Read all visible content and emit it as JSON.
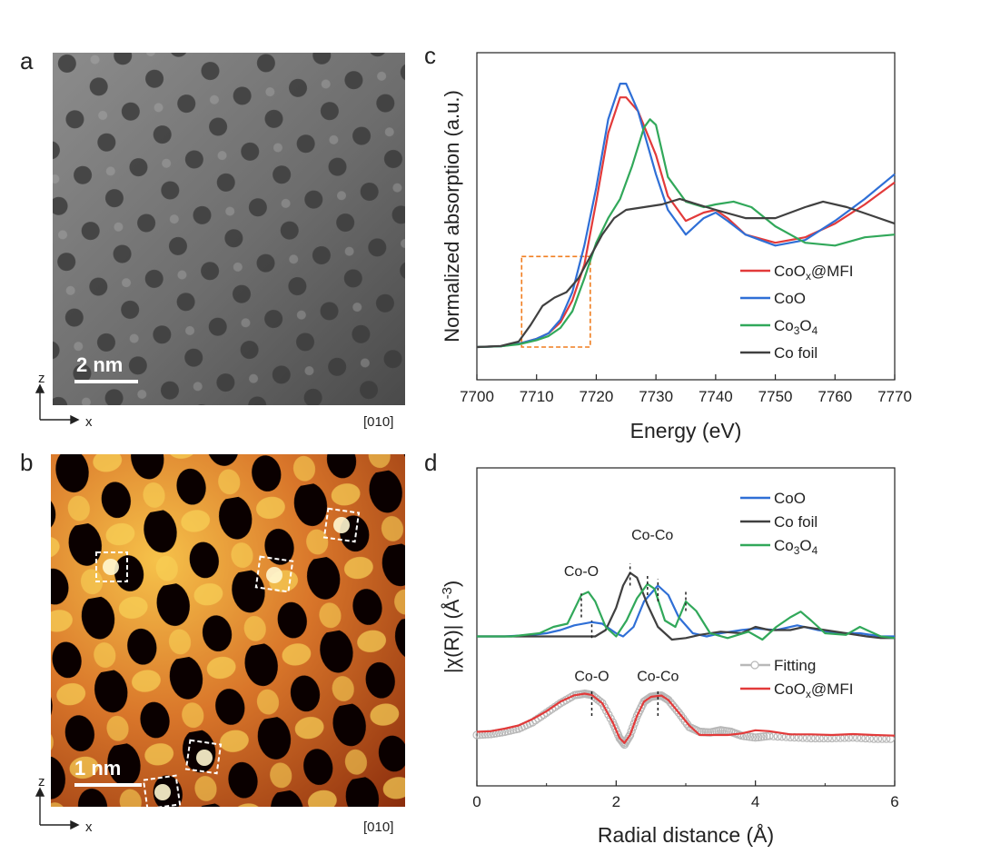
{
  "panels": {
    "a": {
      "label": "a",
      "scale_bar": "2 nm",
      "axis_z": "z",
      "axis_x": "x",
      "zone_axis": "[010]"
    },
    "b": {
      "label": "b",
      "scale_bar": "1 nm",
      "axis_z": "z",
      "axis_x": "x",
      "zone_axis": "[010]"
    },
    "c": {
      "label": "c"
    },
    "d": {
      "label": "d"
    }
  },
  "colors": {
    "red": "#e23a3a",
    "blue": "#2f6fd6",
    "green": "#31a85a",
    "gray": "#404040",
    "orange": "#f07d1f",
    "fit": "#b8b8b8"
  },
  "chart_data": [
    {
      "type": "line",
      "panel": "c",
      "xlabel": "Energy (eV)",
      "ylabel": "Normalized absorption (a.u.)",
      "xlim": [
        7700,
        7770
      ],
      "xticks": [
        7700,
        7710,
        7720,
        7730,
        7740,
        7750,
        7760,
        7770
      ],
      "ylim": [
        0,
        1.0
      ],
      "legend_position": "bottom-right",
      "annotations": [
        {
          "type": "dashed-box",
          "x": [
            7707.5,
            7719
          ],
          "y": [
            0,
            0.33
          ],
          "color": "orange"
        }
      ],
      "series": [
        {
          "name": "CoOx@MFI",
          "color": "red",
          "x": [
            7700,
            7704,
            7707,
            7710,
            7712,
            7714,
            7716,
            7718,
            7720,
            7722,
            7724,
            7725,
            7727,
            7730,
            7732,
            7735,
            7738,
            7740,
            7742,
            7745,
            7750,
            7755,
            7760,
            7765,
            7770
          ],
          "y": [
            0,
            0.003,
            0.012,
            0.03,
            0.05,
            0.09,
            0.17,
            0.3,
            0.53,
            0.78,
            0.91,
            0.91,
            0.86,
            0.7,
            0.55,
            0.46,
            0.49,
            0.5,
            0.47,
            0.41,
            0.38,
            0.4,
            0.45,
            0.52,
            0.6
          ]
        },
        {
          "name": "CoO",
          "color": "blue",
          "x": [
            7700,
            7704,
            7707,
            7710,
            7712,
            7714,
            7716,
            7718,
            7720,
            7722,
            7724,
            7725,
            7727,
            7730,
            7732,
            7735,
            7738,
            7740,
            7742,
            7745,
            7750,
            7755,
            7760,
            7765,
            7770
          ],
          "y": [
            0,
            0.003,
            0.012,
            0.03,
            0.05,
            0.1,
            0.2,
            0.37,
            0.58,
            0.83,
            0.96,
            0.96,
            0.86,
            0.63,
            0.5,
            0.41,
            0.47,
            0.49,
            0.46,
            0.41,
            0.37,
            0.39,
            0.46,
            0.54,
            0.63
          ]
        },
        {
          "name": "Co3O4",
          "color": "green",
          "x": [
            7700,
            7704,
            7707,
            7710,
            7712,
            7714,
            7716,
            7718,
            7720,
            7722,
            7724,
            7726,
            7728,
            7729,
            7730,
            7732,
            7735,
            7738,
            7740,
            7743,
            7746,
            7750,
            7755,
            7760,
            7765,
            7770
          ],
          "y": [
            0,
            0.003,
            0.01,
            0.025,
            0.04,
            0.07,
            0.13,
            0.25,
            0.38,
            0.47,
            0.54,
            0.66,
            0.8,
            0.83,
            0.81,
            0.62,
            0.53,
            0.51,
            0.52,
            0.53,
            0.51,
            0.44,
            0.38,
            0.37,
            0.4,
            0.41
          ]
        },
        {
          "name": "Co foil",
          "color": "gray",
          "x": [
            7700,
            7704,
            7707,
            7709,
            7711,
            7713,
            7715,
            7717,
            7719,
            7721,
            7723,
            7725,
            7728,
            7731,
            7734,
            7737,
            7740,
            7745,
            7750,
            7755,
            7758,
            7762,
            7766,
            7770
          ],
          "y": [
            0,
            0.004,
            0.02,
            0.08,
            0.15,
            0.18,
            0.2,
            0.25,
            0.33,
            0.41,
            0.47,
            0.5,
            0.51,
            0.52,
            0.54,
            0.52,
            0.5,
            0.47,
            0.47,
            0.51,
            0.53,
            0.51,
            0.48,
            0.45
          ]
        }
      ],
      "legend": [
        {
          "base": "CoO",
          "sub": "x",
          "rest": "@MFI",
          "color": "red"
        },
        {
          "base": "CoO",
          "sub": "",
          "rest": "",
          "color": "blue"
        },
        {
          "base": "Co",
          "sub": "3",
          "rest": "O",
          "sub2": "4",
          "color": "green"
        },
        {
          "base": "Co foil",
          "sub": "",
          "rest": "",
          "color": "gray"
        }
      ]
    },
    {
      "type": "line",
      "panel": "d",
      "xlabel": "Radial distance (Å)",
      "ylabel_parts": [
        "|χ(R)| (Å",
        "-3",
        ")"
      ],
      "xlim": [
        0,
        6
      ],
      "xticks": [
        0,
        2,
        4,
        6
      ],
      "ylim": [
        0,
        1.0
      ],
      "legend_position": "top-right",
      "series": [
        {
          "name": "CoO",
          "color": "blue",
          "group": "top",
          "x": [
            0,
            0.4,
            0.8,
            1.0,
            1.2,
            1.4,
            1.65,
            1.8,
            2.0,
            2.1,
            2.25,
            2.4,
            2.6,
            2.75,
            2.9,
            3.1,
            3.3,
            3.5,
            3.8,
            4.0,
            4.3,
            4.6,
            4.9,
            5.2,
            5.5,
            5.8,
            6.0
          ],
          "y": [
            0.47,
            0.47,
            0.475,
            0.48,
            0.49,
            0.505,
            0.515,
            0.51,
            0.48,
            0.47,
            0.5,
            0.58,
            0.63,
            0.6,
            0.53,
            0.48,
            0.47,
            0.48,
            0.49,
            0.495,
            0.49,
            0.505,
            0.49,
            0.48,
            0.48,
            0.47,
            0.47
          ]
        },
        {
          "name": "Co foil",
          "color": "gray",
          "group": "top",
          "x": [
            0,
            0.5,
            1.0,
            1.3,
            1.5,
            1.7,
            1.85,
            2.0,
            2.1,
            2.2,
            2.3,
            2.45,
            2.6,
            2.8,
            3.0,
            3.2,
            3.5,
            3.8,
            4.0,
            4.2,
            4.5,
            4.7,
            5.0,
            5.3,
            5.6,
            5.8,
            6.0
          ],
          "y": [
            0.47,
            0.47,
            0.47,
            0.47,
            0.47,
            0.47,
            0.49,
            0.56,
            0.63,
            0.67,
            0.655,
            0.57,
            0.5,
            0.46,
            0.465,
            0.475,
            0.485,
            0.48,
            0.5,
            0.49,
            0.49,
            0.5,
            0.49,
            0.48,
            0.47,
            0.465,
            0.465
          ]
        },
        {
          "name": "Co3O4",
          "color": "green",
          "group": "top",
          "x": [
            0,
            0.5,
            0.9,
            1.1,
            1.3,
            1.5,
            1.6,
            1.7,
            1.85,
            2.0,
            2.15,
            2.3,
            2.45,
            2.55,
            2.7,
            2.85,
            3.0,
            3.15,
            3.35,
            3.6,
            3.9,
            4.1,
            4.3,
            4.5,
            4.65,
            4.8,
            5.0,
            5.3,
            5.5,
            5.6,
            5.8,
            6.0
          ],
          "y": [
            0.47,
            0.47,
            0.48,
            0.5,
            0.51,
            0.6,
            0.61,
            0.58,
            0.5,
            0.47,
            0.52,
            0.59,
            0.635,
            0.62,
            0.52,
            0.5,
            0.58,
            0.55,
            0.48,
            0.465,
            0.485,
            0.46,
            0.5,
            0.53,
            0.548,
            0.52,
            0.48,
            0.475,
            0.5,
            0.49,
            0.47,
            0.465
          ]
        },
        {
          "name": "Fitting",
          "color": "fit",
          "group": "bottom",
          "marker": "circle",
          "x": [
            0,
            0.2,
            0.4,
            0.6,
            0.8,
            1.0,
            1.2,
            1.4,
            1.55,
            1.65,
            1.8,
            1.95,
            2.05,
            2.12,
            2.2,
            2.3,
            2.4,
            2.5,
            2.6,
            2.65,
            2.75,
            2.9,
            3.05,
            3.2,
            3.35,
            3.5,
            3.65,
            3.8,
            4.0,
            4.2,
            4.5,
            4.8,
            5.1,
            5.4,
            5.7,
            6.0
          ],
          "y": [
            0.16,
            0.163,
            0.17,
            0.18,
            0.2,
            0.23,
            0.26,
            0.285,
            0.29,
            0.286,
            0.26,
            0.2,
            0.15,
            0.13,
            0.16,
            0.22,
            0.265,
            0.28,
            0.283,
            0.284,
            0.27,
            0.23,
            0.185,
            0.17,
            0.168,
            0.175,
            0.17,
            0.158,
            0.152,
            0.157,
            0.153,
            0.15,
            0.15,
            0.152,
            0.148,
            0.148
          ]
        },
        {
          "name": "CoOx@MFI",
          "color": "red",
          "group": "bottom",
          "x": [
            0,
            0.2,
            0.4,
            0.6,
            0.8,
            1.0,
            1.2,
            1.4,
            1.55,
            1.65,
            1.8,
            1.95,
            2.05,
            2.12,
            2.2,
            2.3,
            2.4,
            2.5,
            2.6,
            2.65,
            2.75,
            2.9,
            3.05,
            3.2,
            3.4,
            3.6,
            3.8,
            4.0,
            4.2,
            4.5,
            4.8,
            5.1,
            5.4,
            5.7,
            6.0
          ],
          "y": [
            0.17,
            0.172,
            0.18,
            0.19,
            0.21,
            0.235,
            0.265,
            0.285,
            0.29,
            0.286,
            0.26,
            0.2,
            0.15,
            0.135,
            0.16,
            0.22,
            0.265,
            0.28,
            0.283,
            0.284,
            0.27,
            0.23,
            0.19,
            0.16,
            0.16,
            0.16,
            0.165,
            0.175,
            0.172,
            0.162,
            0.162,
            0.16,
            0.163,
            0.16,
            0.158
          ]
        }
      ],
      "annotations": [
        {
          "text": "Co-O",
          "x": 1.5,
          "y": 0.66
        },
        {
          "text": "Co-Co",
          "x": 2.52,
          "y": 0.775
        },
        {
          "text": "Co-O",
          "x": 1.65,
          "y": 0.33
        },
        {
          "text": "Co-Co",
          "x": 2.6,
          "y": 0.33
        }
      ],
      "dashed_markers": [
        {
          "x": 1.5,
          "y": [
            0.53,
            0.605
          ]
        },
        {
          "x": 1.65,
          "y": [
            0.465,
            0.52
          ]
        },
        {
          "x": 2.2,
          "y": [
            0.63,
            0.7
          ]
        },
        {
          "x": 2.45,
          "y": [
            0.6,
            0.66
          ]
        },
        {
          "x": 2.6,
          "y": [
            0.58,
            0.65
          ]
        },
        {
          "x": 3.0,
          "y": [
            0.55,
            0.61
          ]
        },
        {
          "x": 1.65,
          "y": [
            0.22,
            0.305
          ]
        },
        {
          "x": 2.6,
          "y": [
            0.22,
            0.305
          ]
        }
      ],
      "legend": [
        {
          "base": "CoO",
          "sub": "",
          "rest": "",
          "color": "blue"
        },
        {
          "base": "Co foil",
          "sub": "",
          "rest": "",
          "color": "gray"
        },
        {
          "base": "Co",
          "sub": "3",
          "rest": "O",
          "sub2": "4",
          "color": "green"
        },
        {
          "base": "Fitting",
          "sub": "",
          "rest": "",
          "color": "fit",
          "marker": "circle"
        },
        {
          "base": "CoO",
          "sub": "x",
          "rest": "@MFI",
          "color": "red"
        }
      ]
    }
  ]
}
